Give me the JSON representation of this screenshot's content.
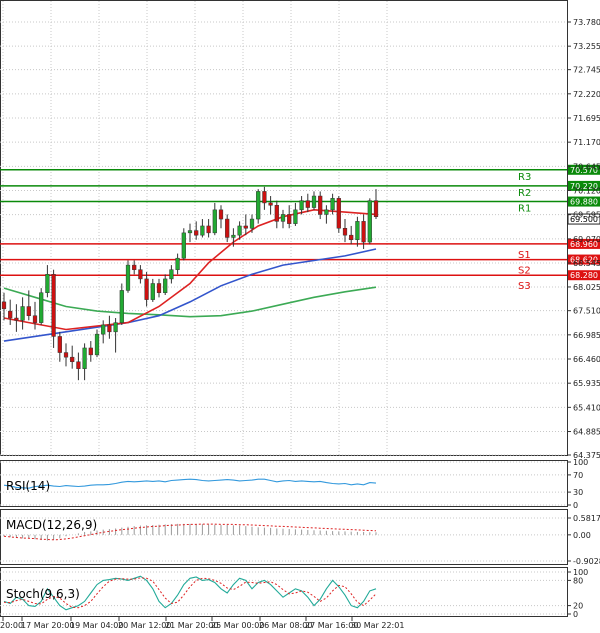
{
  "chart_data": {
    "type": "candlestick",
    "main": {
      "price_ticks": [
        "73.780",
        "73.255",
        "72.745",
        "72.220",
        "71.695",
        "71.170",
        "70.645",
        "70.120",
        "69.595",
        "69.070",
        "68.545",
        "68.025",
        "67.510",
        "66.985",
        "66.460",
        "65.935",
        "65.410",
        "64.885",
        "64.375"
      ],
      "current_price": "69.500",
      "levels": [
        {
          "name": "R3",
          "value": 70.57,
          "label": "70.570",
          "color": "#0a8a0a"
        },
        {
          "name": "R2",
          "value": 70.22,
          "label": "70.220",
          "color": "#0a8a0a"
        },
        {
          "name": "R1",
          "value": 69.88,
          "label": "69.880",
          "color": "#0a8a0a"
        },
        {
          "name": "S1",
          "value": 68.96,
          "label": "68.960",
          "color": "#dd1111"
        },
        {
          "name": "S2",
          "value": 68.62,
          "label": "68.620",
          "color": "#dd1111"
        },
        {
          "name": "S3",
          "value": 68.28,
          "label": "68.280",
          "color": "#dd1111"
        }
      ],
      "candles": [
        {
          "o": 67.7,
          "h": 67.9,
          "l": 67.3,
          "c": 67.55
        },
        {
          "o": 67.5,
          "h": 67.75,
          "l": 67.2,
          "c": 67.35
        },
        {
          "o": 67.35,
          "h": 67.65,
          "l": 67.05,
          "c": 67.3
        },
        {
          "o": 67.3,
          "h": 67.8,
          "l": 67.1,
          "c": 67.6
        },
        {
          "o": 67.6,
          "h": 67.95,
          "l": 67.3,
          "c": 67.4
        },
        {
          "o": 67.4,
          "h": 67.7,
          "l": 67.1,
          "c": 67.25
        },
        {
          "o": 67.25,
          "h": 68.0,
          "l": 67.2,
          "c": 67.9
        },
        {
          "o": 67.9,
          "h": 68.5,
          "l": 67.8,
          "c": 68.3
        },
        {
          "o": 68.3,
          "h": 68.4,
          "l": 66.7,
          "c": 66.95
        },
        {
          "o": 66.95,
          "h": 67.05,
          "l": 66.4,
          "c": 66.6
        },
        {
          "o": 66.6,
          "h": 66.8,
          "l": 66.3,
          "c": 66.5
        },
        {
          "o": 66.5,
          "h": 66.75,
          "l": 66.25,
          "c": 66.4
        },
        {
          "o": 66.4,
          "h": 66.6,
          "l": 66.0,
          "c": 66.25
        },
        {
          "o": 66.25,
          "h": 66.8,
          "l": 66.0,
          "c": 66.7
        },
        {
          "o": 66.7,
          "h": 66.85,
          "l": 66.4,
          "c": 66.55
        },
        {
          "o": 66.55,
          "h": 67.1,
          "l": 66.5,
          "c": 67.0
        },
        {
          "o": 67.0,
          "h": 67.3,
          "l": 66.8,
          "c": 67.2
        },
        {
          "o": 67.2,
          "h": 67.4,
          "l": 66.9,
          "c": 67.05
        },
        {
          "o": 67.05,
          "h": 67.35,
          "l": 66.6,
          "c": 67.25
        },
        {
          "o": 67.25,
          "h": 68.1,
          "l": 67.2,
          "c": 67.95
        },
        {
          "o": 67.95,
          "h": 68.6,
          "l": 67.9,
          "c": 68.5
        },
        {
          "o": 68.5,
          "h": 68.6,
          "l": 68.3,
          "c": 68.4
        },
        {
          "o": 68.4,
          "h": 68.5,
          "l": 68.1,
          "c": 68.2
        },
        {
          "o": 68.2,
          "h": 68.35,
          "l": 67.6,
          "c": 67.75
        },
        {
          "o": 67.75,
          "h": 68.2,
          "l": 67.7,
          "c": 68.1
        },
        {
          "o": 68.1,
          "h": 68.2,
          "l": 67.8,
          "c": 67.9
        },
        {
          "o": 67.9,
          "h": 68.3,
          "l": 67.85,
          "c": 68.2
        },
        {
          "o": 68.2,
          "h": 68.5,
          "l": 68.1,
          "c": 68.4
        },
        {
          "o": 68.4,
          "h": 68.75,
          "l": 68.3,
          "c": 68.65
        },
        {
          "o": 68.65,
          "h": 69.3,
          "l": 68.6,
          "c": 69.2
        },
        {
          "o": 69.2,
          "h": 69.4,
          "l": 69.0,
          "c": 69.25
        },
        {
          "o": 69.25,
          "h": 69.45,
          "l": 69.05,
          "c": 69.15
        },
        {
          "o": 69.15,
          "h": 69.5,
          "l": 69.1,
          "c": 69.35
        },
        {
          "o": 69.35,
          "h": 69.5,
          "l": 69.1,
          "c": 69.2
        },
        {
          "o": 69.2,
          "h": 69.85,
          "l": 69.15,
          "c": 69.7
        },
        {
          "o": 69.7,
          "h": 69.8,
          "l": 69.3,
          "c": 69.5
        },
        {
          "o": 69.5,
          "h": 69.6,
          "l": 69.0,
          "c": 69.1
        },
        {
          "o": 69.1,
          "h": 69.3,
          "l": 68.9,
          "c": 69.15
        },
        {
          "o": 69.15,
          "h": 69.45,
          "l": 69.05,
          "c": 69.35
        },
        {
          "o": 69.35,
          "h": 69.6,
          "l": 69.15,
          "c": 69.3
        },
        {
          "o": 69.3,
          "h": 69.6,
          "l": 69.2,
          "c": 69.5
        },
        {
          "o": 69.5,
          "h": 70.15,
          "l": 69.4,
          "c": 70.1
        },
        {
          "o": 70.1,
          "h": 70.2,
          "l": 69.7,
          "c": 69.85
        },
        {
          "o": 69.85,
          "h": 70.0,
          "l": 69.6,
          "c": 69.8
        },
        {
          "o": 69.8,
          "h": 69.9,
          "l": 69.3,
          "c": 69.45
        },
        {
          "o": 69.45,
          "h": 69.7,
          "l": 69.3,
          "c": 69.6
        },
        {
          "o": 69.6,
          "h": 69.8,
          "l": 69.3,
          "c": 69.4
        },
        {
          "o": 69.4,
          "h": 69.85,
          "l": 69.35,
          "c": 69.7
        },
        {
          "o": 69.7,
          "h": 70.0,
          "l": 69.6,
          "c": 69.9
        },
        {
          "o": 69.9,
          "h": 70.05,
          "l": 69.65,
          "c": 69.75
        },
        {
          "o": 69.75,
          "h": 70.1,
          "l": 69.7,
          "c": 70.0
        },
        {
          "o": 70.0,
          "h": 70.1,
          "l": 69.5,
          "c": 69.6
        },
        {
          "o": 69.6,
          "h": 69.8,
          "l": 69.4,
          "c": 69.7
        },
        {
          "o": 69.7,
          "h": 70.05,
          "l": 69.6,
          "c": 69.95
        },
        {
          "o": 69.95,
          "h": 70.0,
          "l": 69.2,
          "c": 69.3
        },
        {
          "o": 69.3,
          "h": 69.5,
          "l": 69.0,
          "c": 69.15
        },
        {
          "o": 69.15,
          "h": 69.35,
          "l": 68.95,
          "c": 69.05
        },
        {
          "o": 69.05,
          "h": 69.55,
          "l": 68.9,
          "c": 69.45
        },
        {
          "o": 69.45,
          "h": 69.6,
          "l": 68.85,
          "c": 69.0
        },
        {
          "o": 69.0,
          "h": 69.95,
          "l": 68.95,
          "c": 69.9
        },
        {
          "o": 69.9,
          "h": 70.15,
          "l": 69.5,
          "c": 69.55
        }
      ],
      "ma_red": [
        [
          0,
          67.35
        ],
        [
          10,
          67.1
        ],
        [
          20,
          67.25
        ],
        [
          25,
          67.6
        ],
        [
          30,
          68.1
        ],
        [
          33,
          68.55
        ],
        [
          37,
          69.0
        ],
        [
          41,
          69.35
        ],
        [
          45,
          69.55
        ],
        [
          50,
          69.7
        ],
        [
          55,
          69.65
        ],
        [
          60,
          69.6
        ]
      ],
      "ma_blue": [
        [
          0,
          66.85
        ],
        [
          10,
          67.05
        ],
        [
          20,
          67.25
        ],
        [
          25,
          67.4
        ],
        [
          30,
          67.7
        ],
        [
          35,
          68.05
        ],
        [
          40,
          68.3
        ],
        [
          45,
          68.5
        ],
        [
          50,
          68.6
        ],
        [
          55,
          68.7
        ],
        [
          60,
          68.85
        ]
      ],
      "ma_green": [
        [
          0,
          68.0
        ],
        [
          5,
          67.8
        ],
        [
          10,
          67.6
        ],
        [
          15,
          67.5
        ],
        [
          20,
          67.45
        ],
        [
          25,
          67.42
        ],
        [
          30,
          67.38
        ],
        [
          35,
          67.4
        ],
        [
          40,
          67.5
        ],
        [
          45,
          67.65
        ],
        [
          50,
          67.8
        ],
        [
          55,
          67.92
        ],
        [
          60,
          68.02
        ]
      ]
    },
    "rsi": {
      "label": "RSI(14)",
      "ticks": [
        "100",
        "70",
        "30",
        "0"
      ],
      "values": [
        46,
        44,
        41,
        40,
        39,
        43,
        44,
        46,
        44,
        43,
        45,
        44,
        43,
        44,
        46,
        47,
        47,
        48,
        50,
        53,
        55,
        54,
        55,
        56,
        55,
        56,
        54,
        57,
        58,
        59,
        60,
        59,
        57,
        56,
        57,
        58,
        59,
        58,
        56,
        57,
        58,
        60,
        60,
        57,
        54,
        56,
        57,
        55,
        56,
        55,
        54,
        55,
        52,
        50,
        49,
        50,
        47,
        49,
        47,
        52,
        51
      ]
    },
    "macd": {
      "label": "MACD(12,26,9)",
      "ticks": [
        "0.5817",
        "0.00",
        "-0.9028"
      ],
      "histogram": [
        -0.05,
        -0.08,
        -0.1,
        -0.12,
        -0.12,
        -0.15,
        -0.18,
        -0.2,
        -0.18,
        -0.12,
        -0.05,
        0.0,
        0.05,
        0.1,
        0.12,
        0.15,
        0.18,
        0.2,
        0.22,
        0.25,
        0.28,
        0.3,
        0.32,
        0.33,
        0.34,
        0.35,
        0.36,
        0.37,
        0.38,
        0.38,
        0.38,
        0.38,
        0.37,
        0.36,
        0.35,
        0.34,
        0.34,
        0.33,
        0.32,
        0.3,
        0.28,
        0.26,
        0.25,
        0.24,
        0.22,
        0.21,
        0.2,
        0.19,
        0.18,
        0.17,
        0.16,
        0.15,
        0.14,
        0.13,
        0.12,
        0.12,
        0.11,
        0.1,
        0.1,
        0.09,
        0.09
      ],
      "signal": [
        -0.05,
        -0.07,
        -0.09,
        -0.11,
        -0.12,
        -0.13,
        -0.15,
        -0.16,
        -0.17,
        -0.16,
        -0.14,
        -0.11,
        -0.07,
        -0.03,
        0.01,
        0.05,
        0.09,
        0.12,
        0.15,
        0.18,
        0.2,
        0.23,
        0.25,
        0.27,
        0.29,
        0.3,
        0.32,
        0.33,
        0.34,
        0.35,
        0.36,
        0.36,
        0.37,
        0.37,
        0.37,
        0.36,
        0.36,
        0.36,
        0.35,
        0.35,
        0.34,
        0.33,
        0.32,
        0.31,
        0.3,
        0.29,
        0.28,
        0.27,
        0.26,
        0.25,
        0.24,
        0.23,
        0.22,
        0.21,
        0.2,
        0.19,
        0.18,
        0.17,
        0.16,
        0.15,
        0.14
      ]
    },
    "stoch": {
      "label": "Stoch(9,6,3)",
      "ticks": [
        "100",
        "80",
        "20",
        "0"
      ],
      "k": [
        30,
        25,
        40,
        35,
        20,
        18,
        30,
        60,
        40,
        20,
        10,
        15,
        20,
        30,
        50,
        70,
        80,
        82,
        85,
        83,
        80,
        85,
        90,
        80,
        60,
        30,
        15,
        25,
        45,
        70,
        85,
        88,
        80,
        82,
        75,
        60,
        50,
        70,
        85,
        80,
        60,
        75,
        80,
        70,
        55,
        40,
        50,
        60,
        55,
        40,
        20,
        35,
        60,
        80,
        65,
        45,
        20,
        15,
        30,
        55,
        60
      ],
      "d": [
        28,
        27,
        32,
        35,
        30,
        25,
        24,
        35,
        42,
        38,
        25,
        16,
        15,
        20,
        30,
        48,
        65,
        78,
        83,
        84,
        83,
        83,
        86,
        85,
        78,
        58,
        38,
        25,
        28,
        45,
        65,
        80,
        85,
        84,
        80,
        73,
        62,
        58,
        66,
        76,
        75,
        73,
        75,
        77,
        70,
        58,
        48,
        50,
        55,
        52,
        42,
        30,
        38,
        55,
        68,
        65,
        48,
        28,
        20,
        33,
        48
      ]
    },
    "x_axis": [
      "20:00",
      "17 Mar 20:00",
      "19 Mar 04:00",
      "20 Mar 12:00",
      "21 Mar 20:00",
      "25 Mar 00:00",
      "26 Mar 08:00",
      "27 Mar 16:00",
      "30 Mar 22:01"
    ]
  }
}
